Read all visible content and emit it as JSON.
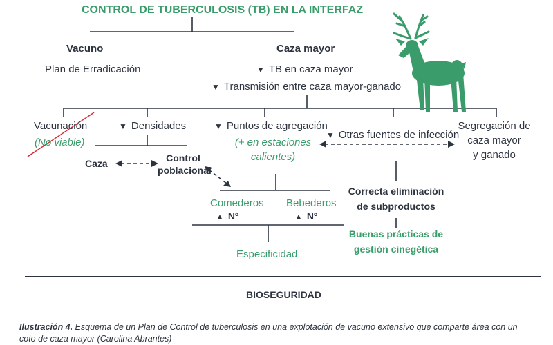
{
  "title": "CONTROL DE TUBERCULOSIS  (TB)  EN LA INTERFAZ",
  "left_branch": {
    "heading": "Vacuno",
    "item": "Plan de Erradicación"
  },
  "right_branch": {
    "heading": "Caza mayor",
    "item1": "TB en caza mayor",
    "item2": "Transmisión entre caza mayor-ganado"
  },
  "measures": {
    "vaccination": "Vacunación",
    "vaccination_note": "(No viable)",
    "densities": "Densidades",
    "hunting": "Caza",
    "population_control_line1": "Control",
    "population_control_line2": "poblacional",
    "aggregation_points": "Puntos de agregación",
    "aggregation_note_line1": "(+ en estaciones",
    "aggregation_note_line2": "calientes)",
    "feeders": "Comederos",
    "drinkers": "Bebederos",
    "feeders_count": "Nº",
    "drinkers_count": "Nº",
    "specificity": "Especificidad",
    "other_sources": "Otras fuentes de infección",
    "segregation_line1": "Segregación de",
    "segregation_line2": "caza mayor",
    "segregation_line3": "y ganado",
    "disposal_line1": "Correcta eliminación",
    "disposal_line2": "de subproductos",
    "practices_line1": "Buenas prácticas de",
    "practices_line2": "gestión cinegética"
  },
  "footer": "BIOSEGURIDAD",
  "caption": {
    "label": "Ilustración 4.",
    "text": "Esquema de un Plan de Control de tuberculosis en una explotación de vacuno extensivo que comparte área con un coto de caza mayor (Carolina Abrantes)"
  },
  "icons": {
    "deer": "deer-silhouette-icon",
    "down": "arrow-down-icon",
    "up": "arrow-up-icon",
    "double": "double-arrow-dashed-icon"
  },
  "colors": {
    "green": "#3a9c6a",
    "dark": "#2d3440",
    "strike": "#d9262f"
  }
}
